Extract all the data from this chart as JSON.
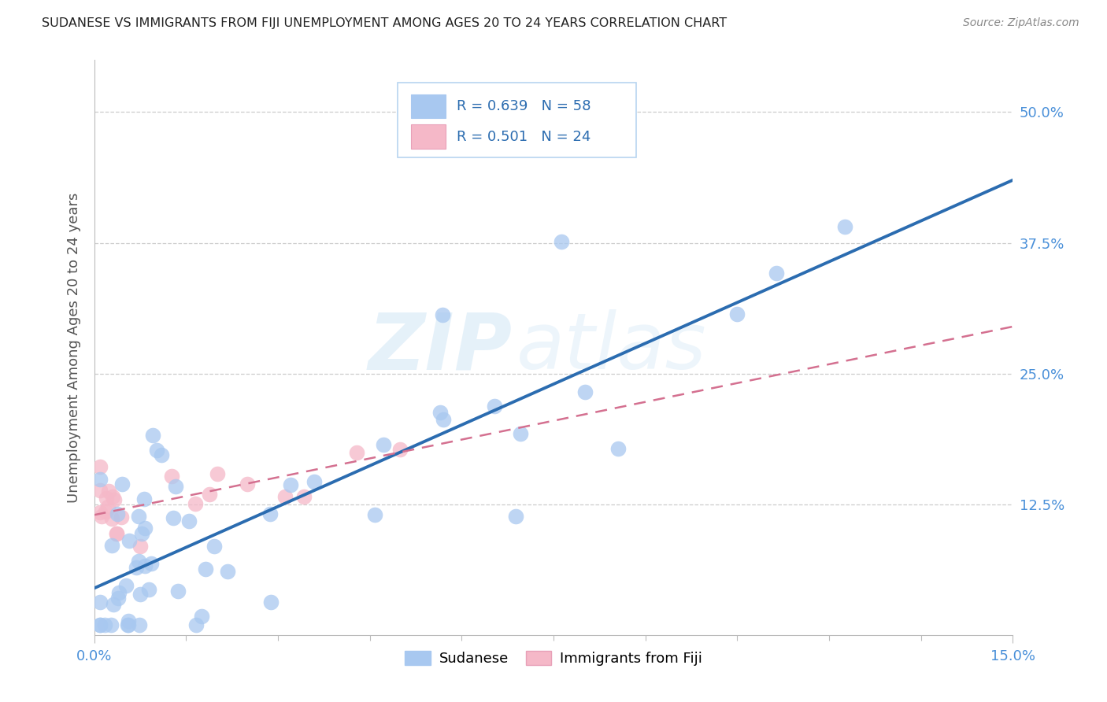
{
  "title": "SUDANESE VS IMMIGRANTS FROM FIJI UNEMPLOYMENT AMONG AGES 20 TO 24 YEARS CORRELATION CHART",
  "source": "Source: ZipAtlas.com",
  "ylabel_label": "Unemployment Among Ages 20 to 24 years",
  "sudanese_R": "R = 0.639",
  "sudanese_N": "N = 58",
  "fiji_R": "R = 0.501",
  "fiji_N": "N = 24",
  "sudanese_color": "#a8c8f0",
  "sudanese_line_color": "#2b6cb0",
  "fiji_color": "#f5b8c8",
  "fiji_line_color": "#d47090",
  "background_color": "#ffffff",
  "watermark_zip": "ZIP",
  "watermark_atlas": "atlas",
  "xmin": 0.0,
  "xmax": 0.15,
  "ymin": 0.0,
  "ymax": 0.55,
  "ytick_vals": [
    0.125,
    0.25,
    0.375,
    0.5
  ],
  "ytick_labels": [
    "12.5%",
    "25.0%",
    "37.5%",
    "50.0%"
  ],
  "xtick_vals": [
    0.0,
    0.15
  ],
  "xtick_labels": [
    "0.0%",
    "15.0%"
  ],
  "grid_color": "#cccccc",
  "title_color": "#222222",
  "source_color": "#888888",
  "tick_color": "#4a90d9",
  "legend_border_color": "#b8d4f0"
}
